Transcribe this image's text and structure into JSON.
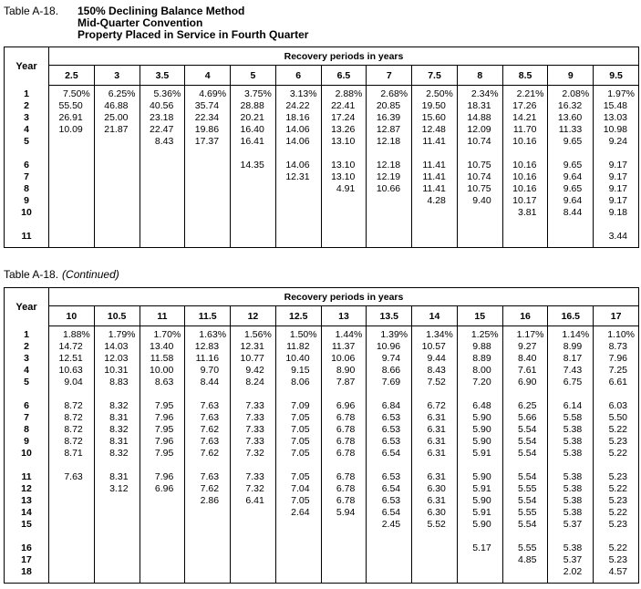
{
  "page": {
    "background": "#ffffff",
    "text_color": "#000000",
    "border_color": "#000000"
  },
  "table1": {
    "label": "Table A-18.",
    "title_lines": [
      "150% Declining Balance Method",
      "Mid-Quarter Convention",
      "Property Placed in Service in Fourth Quarter"
    ],
    "year_header": "Year",
    "span_header": "Recovery periods in years",
    "columns": [
      "2.5",
      "3",
      "3.5",
      "4",
      "5",
      "6",
      "6.5",
      "7",
      "7.5",
      "8",
      "8.5",
      "9",
      "9.5"
    ],
    "rows": [
      {
        "year": "1",
        "values": [
          "7.50%",
          "6.25%",
          "5.36%",
          "4.69%",
          "3.75%",
          "3.13%",
          "2.88%",
          "2.68%",
          "2.50%",
          "2.34%",
          "2.21%",
          "2.08%",
          "1.97%"
        ]
      },
      {
        "year": "2",
        "values": [
          "55.50",
          "46.88",
          "40.56",
          "35.74",
          "28.88",
          "24.22",
          "22.41",
          "20.85",
          "19.50",
          "18.31",
          "17.26",
          "16.32",
          "15.48"
        ]
      },
      {
        "year": "3",
        "values": [
          "26.91",
          "25.00",
          "23.18",
          "22.34",
          "20.21",
          "18.16",
          "17.24",
          "16.39",
          "15.60",
          "14.88",
          "14.21",
          "13.60",
          "13.03"
        ]
      },
      {
        "year": "4",
        "values": [
          "10.09",
          "21.87",
          "22.47",
          "19.86",
          "16.40",
          "14.06",
          "13.26",
          "12.87",
          "12.48",
          "12.09",
          "11.70",
          "11.33",
          "10.98"
        ]
      },
      {
        "year": "5",
        "values": [
          "",
          "",
          "8.43",
          "17.37",
          "16.41",
          "14.06",
          "13.10",
          "12.18",
          "11.41",
          "10.74",
          "10.16",
          "9.65",
          "9.24"
        ]
      },
      {
        "year": "",
        "values": [
          "",
          "",
          "",
          "",
          "",
          "",
          "",
          "",
          "",
          "",
          "",
          "",
          ""
        ]
      },
      {
        "year": "6",
        "values": [
          "",
          "",
          "",
          "",
          "14.35",
          "14.06",
          "13.10",
          "12.18",
          "11.41",
          "10.75",
          "10.16",
          "9.65",
          "9.17"
        ]
      },
      {
        "year": "7",
        "values": [
          "",
          "",
          "",
          "",
          "",
          "12.31",
          "13.10",
          "12.19",
          "11.41",
          "10.74",
          "10.16",
          "9.64",
          "9.17"
        ]
      },
      {
        "year": "8",
        "values": [
          "",
          "",
          "",
          "",
          "",
          "",
          "4.91",
          "10.66",
          "11.41",
          "10.75",
          "10.16",
          "9.65",
          "9.17"
        ]
      },
      {
        "year": "9",
        "values": [
          "",
          "",
          "",
          "",
          "",
          "",
          "",
          "",
          "4.28",
          "9.40",
          "10.17",
          "9.64",
          "9.17"
        ]
      },
      {
        "year": "10",
        "values": [
          "",
          "",
          "",
          "",
          "",
          "",
          "",
          "",
          "",
          "",
          "3.81",
          "8.44",
          "9.18"
        ]
      },
      {
        "year": "",
        "values": [
          "",
          "",
          "",
          "",
          "",
          "",
          "",
          "",
          "",
          "",
          "",
          "",
          ""
        ]
      },
      {
        "year": "11",
        "values": [
          "",
          "",
          "",
          "",
          "",
          "",
          "",
          "",
          "",
          "",
          "",
          "",
          "3.44"
        ]
      }
    ]
  },
  "table2": {
    "label": "Table A-18.",
    "continued": "(Continued)",
    "year_header": "Year",
    "span_header": "Recovery periods in years",
    "columns": [
      "10",
      "10.5",
      "11",
      "11.5",
      "12",
      "12.5",
      "13",
      "13.5",
      "14",
      "15",
      "16",
      "16.5",
      "17"
    ],
    "rows": [
      {
        "year": "1",
        "values": [
          "1.88%",
          "1.79%",
          "1.70%",
          "1.63%",
          "1.56%",
          "1.50%",
          "1.44%",
          "1.39%",
          "1.34%",
          "1.25%",
          "1.17%",
          "1.14%",
          "1.10%"
        ]
      },
      {
        "year": "2",
        "values": [
          "14.72",
          "14.03",
          "13.40",
          "12.83",
          "12.31",
          "11.82",
          "11.37",
          "10.96",
          "10.57",
          "9.88",
          "9.27",
          "8.99",
          "8.73"
        ]
      },
      {
        "year": "3",
        "values": [
          "12.51",
          "12.03",
          "11.58",
          "11.16",
          "10.77",
          "10.40",
          "10.06",
          "9.74",
          "9.44",
          "8.89",
          "8.40",
          "8.17",
          "7.96"
        ]
      },
      {
        "year": "4",
        "values": [
          "10.63",
          "10.31",
          "10.00",
          "9.70",
          "9.42",
          "9.15",
          "8.90",
          "8.66",
          "8.43",
          "8.00",
          "7.61",
          "7.43",
          "7.25"
        ]
      },
      {
        "year": "5",
        "values": [
          "9.04",
          "8.83",
          "8.63",
          "8.44",
          "8.24",
          "8.06",
          "7.87",
          "7.69",
          "7.52",
          "7.20",
          "6.90",
          "6.75",
          "6.61"
        ]
      },
      {
        "year": "",
        "values": [
          "",
          "",
          "",
          "",
          "",
          "",
          "",
          "",
          "",
          "",
          "",
          "",
          ""
        ]
      },
      {
        "year": "6",
        "values": [
          "8.72",
          "8.32",
          "7.95",
          "7.63",
          "7.33",
          "7.09",
          "6.96",
          "6.84",
          "6.72",
          "6.48",
          "6.25",
          "6.14",
          "6.03"
        ]
      },
      {
        "year": "7",
        "values": [
          "8.72",
          "8.31",
          "7.96",
          "7.63",
          "7.33",
          "7.05",
          "6.78",
          "6.53",
          "6.31",
          "5.90",
          "5.66",
          "5.58",
          "5.50"
        ]
      },
      {
        "year": "8",
        "values": [
          "8.72",
          "8.32",
          "7.95",
          "7.62",
          "7.33",
          "7.05",
          "6.78",
          "6.53",
          "6.31",
          "5.90",
          "5.54",
          "5.38",
          "5.22"
        ]
      },
      {
        "year": "9",
        "values": [
          "8.72",
          "8.31",
          "7.96",
          "7.63",
          "7.33",
          "7.05",
          "6.78",
          "6.53",
          "6.31",
          "5.90",
          "5.54",
          "5.38",
          "5.23"
        ]
      },
      {
        "year": "10",
        "values": [
          "8.71",
          "8.32",
          "7.95",
          "7.62",
          "7.32",
          "7.05",
          "6.78",
          "6.54",
          "6.31",
          "5.91",
          "5.54",
          "5.38",
          "5.22"
        ]
      },
      {
        "year": "",
        "values": [
          "",
          "",
          "",
          "",
          "",
          "",
          "",
          "",
          "",
          "",
          "",
          "",
          ""
        ]
      },
      {
        "year": "11",
        "values": [
          "7.63",
          "8.31",
          "7.96",
          "7.63",
          "7.33",
          "7.05",
          "6.78",
          "6.53",
          "6.31",
          "5.90",
          "5.54",
          "5.38",
          "5.23"
        ]
      },
      {
        "year": "12",
        "values": [
          "",
          "3.12",
          "6.96",
          "7.62",
          "7.32",
          "7.04",
          "6.78",
          "6.54",
          "6.30",
          "5.91",
          "5.55",
          "5.38",
          "5.22"
        ]
      },
      {
        "year": "13",
        "values": [
          "",
          "",
          "",
          "2.86",
          "6.41",
          "7.05",
          "6.78",
          "6.53",
          "6.31",
          "5.90",
          "5.54",
          "5.38",
          "5.23"
        ]
      },
      {
        "year": "14",
        "values": [
          "",
          "",
          "",
          "",
          "",
          "2.64",
          "5.94",
          "6.54",
          "6.30",
          "5.91",
          "5.55",
          "5.38",
          "5.22"
        ]
      },
      {
        "year": "15",
        "values": [
          "",
          "",
          "",
          "",
          "",
          "",
          "",
          "2.45",
          "5.52",
          "5.90",
          "5.54",
          "5.37",
          "5.23"
        ]
      },
      {
        "year": "",
        "values": [
          "",
          "",
          "",
          "",
          "",
          "",
          "",
          "",
          "",
          "",
          "",
          "",
          ""
        ]
      },
      {
        "year": "16",
        "values": [
          "",
          "",
          "",
          "",
          "",
          "",
          "",
          "",
          "",
          "5.17",
          "5.55",
          "5.38",
          "5.22"
        ]
      },
      {
        "year": "17",
        "values": [
          "",
          "",
          "",
          "",
          "",
          "",
          "",
          "",
          "",
          "",
          "4.85",
          "5.37",
          "5.23"
        ]
      },
      {
        "year": "18",
        "values": [
          "",
          "",
          "",
          "",
          "",
          "",
          "",
          "",
          "",
          "",
          "",
          "2.02",
          "4.57"
        ]
      }
    ]
  }
}
